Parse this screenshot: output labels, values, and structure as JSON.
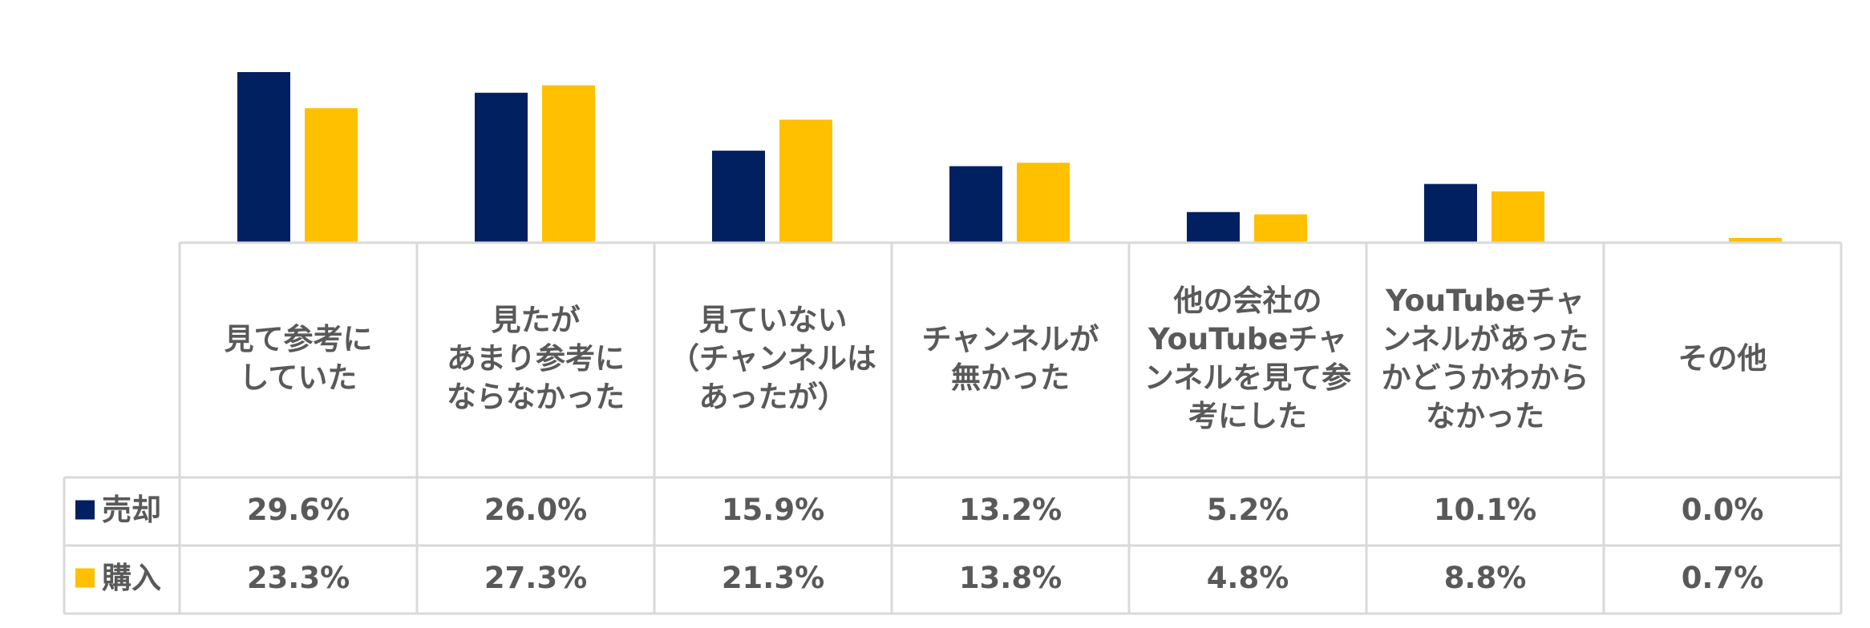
{
  "chart_data": {
    "type": "bar",
    "categories": [
      [
        "見て参考に",
        "していた"
      ],
      [
        "見たが",
        "あまり参考に",
        "ならなかった"
      ],
      [
        "見ていない",
        "（チャンネルは",
        "あったが）"
      ],
      [
        "チャンネルが",
        "無かった"
      ],
      [
        "他の会社の",
        "YouTubeチャ",
        "ンネルを見て参",
        "考にした"
      ],
      [
        "YouTubeチャ",
        "ンネルがあった",
        "かどうかわから",
        "なかった"
      ],
      [
        "その他"
      ]
    ],
    "series": [
      {
        "name": "売却",
        "color": "#002060",
        "values": [
          29.6,
          26.0,
          15.9,
          13.2,
          5.2,
          10.1,
          0.0
        ],
        "labels": [
          "29.6%",
          "26.0%",
          "15.9%",
          "13.2%",
          "5.2%",
          "10.1%",
          "0.0%"
        ]
      },
      {
        "name": "購入",
        "color": "#FFC000",
        "values": [
          23.3,
          27.3,
          21.3,
          13.8,
          4.8,
          8.8,
          0.7
        ],
        "labels": [
          "23.3%",
          "27.3%",
          "21.3%",
          "13.8%",
          "4.8%",
          "8.8%",
          "0.7%"
        ]
      }
    ],
    "ylim": [
      0,
      30
    ],
    "grid": false,
    "data_table": true
  }
}
